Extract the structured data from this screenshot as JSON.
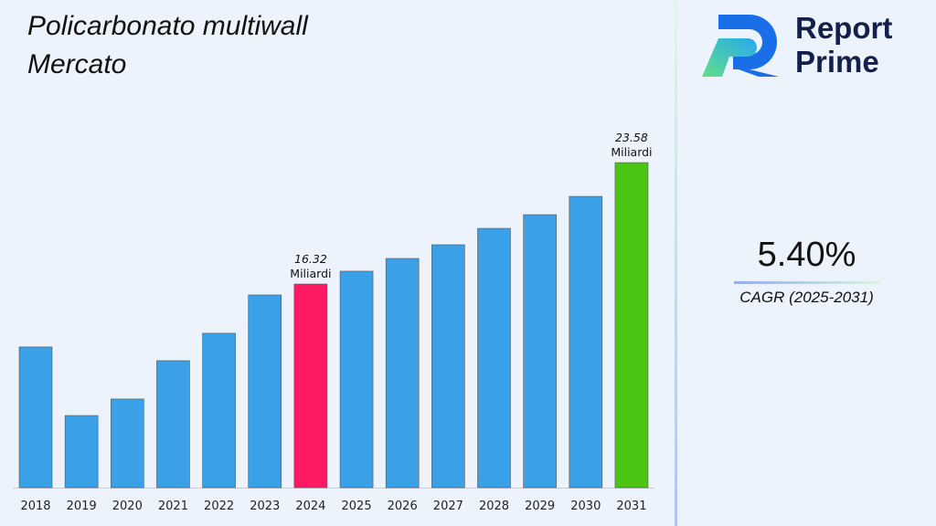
{
  "chart_data": {
    "type": "bar",
    "title": "Policarbonato multiwall Mercato",
    "categories": [
      "2018",
      "2019",
      "2020",
      "2021",
      "2022",
      "2023",
      "2024",
      "2025",
      "2026",
      "2027",
      "2028",
      "2029",
      "2030",
      "2031"
    ],
    "values": [
      12.56,
      8.46,
      9.45,
      11.74,
      13.38,
      15.67,
      16.32,
      17.09,
      17.85,
      18.67,
      19.65,
      20.47,
      21.56,
      23.58
    ],
    "ylim": [
      4.15,
      25
    ],
    "grid": false,
    "data_labels": [
      {
        "category": "2024",
        "value_text": "16.32",
        "unit": "Miliardi"
      },
      {
        "category": "2031",
        "value_text": "23.58",
        "unit": "Miliardi"
      }
    ],
    "colors": {
      "default": "#3aa0e8",
      "highlight_2024": "#ff1a64",
      "highlight_2031": "#4cc414"
    }
  },
  "logo": {
    "line1": "Report",
    "line2": "Prime"
  },
  "cagr": {
    "value": "5.40%",
    "label": "CAGR (2025-2031)"
  }
}
